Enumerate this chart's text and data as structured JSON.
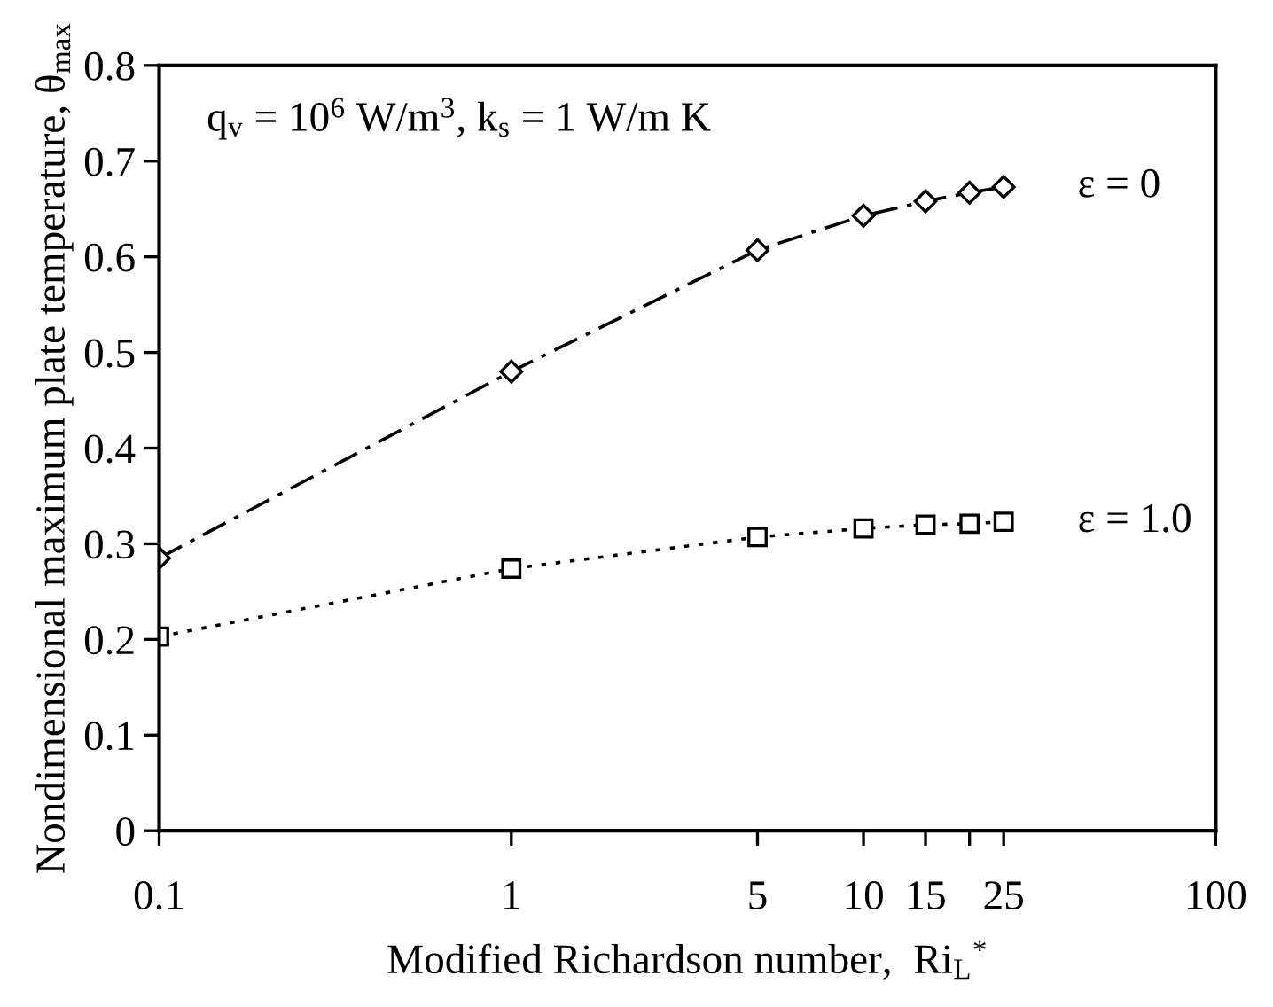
{
  "chart_data": {
    "type": "line",
    "xlabel": "Modified Richardson number,  Ri$_{L}$$^{*}$",
    "ylabel": "Nondimensional maximum plate temperature, θ$_{max}$",
    "annotations": [
      "q$_{v}$ = 10$^{6}$ W/m$^{3}$, k$_{s}$ = 1 W/m K"
    ],
    "x": [
      0.1,
      1,
      5,
      10,
      15,
      20,
      25
    ],
    "series": [
      {
        "name": "ε = 0",
        "color": "#000000",
        "marker": "diamond",
        "line_style": "dashdot",
        "values": [
          0.285,
          0.48,
          0.607,
          0.643,
          0.658,
          0.667,
          0.673
        ]
      },
      {
        "name": "ε = 1.0",
        "color": "#000000",
        "marker": "square",
        "line_style": "dotted",
        "values": [
          0.203,
          0.274,
          0.307,
          0.316,
          0.32,
          0.321,
          0.323
        ]
      }
    ],
    "log": "x",
    "xlim": [
      0.1,
      100
    ],
    "ylim": [
      0,
      0.8
    ],
    "xticks": [
      0.1,
      1,
      5,
      10,
      15,
      {
        "value": 20,
        "label": null
      },
      25,
      100
    ],
    "yticks": [
      0,
      0.1,
      0.2,
      0.3,
      0.4,
      0.5,
      0.6,
      0.7,
      0.8
    ],
    "grid": false,
    "legend": false
  }
}
